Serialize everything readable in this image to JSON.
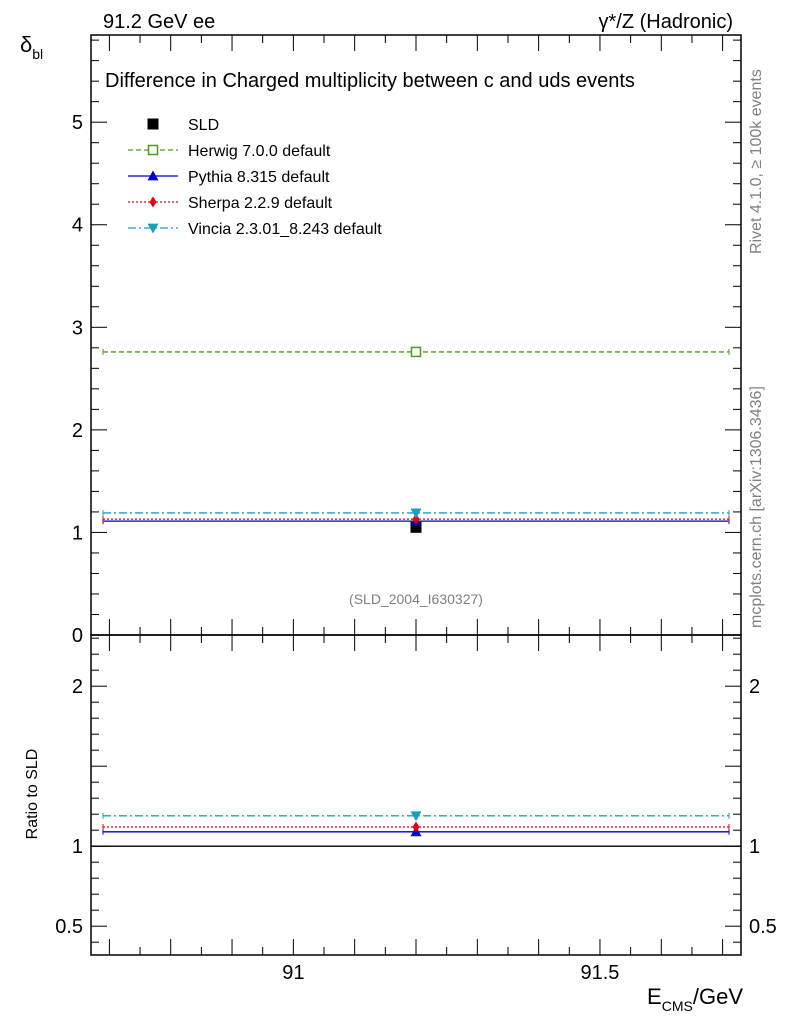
{
  "header": {
    "left": "91.2 GeV ee",
    "right": "γ*/Z (Hadronic)"
  },
  "side_labels": {
    "rivet": "Rivet 4.1.0, ≥ 100k events",
    "mcplots": "mcplots.cern.ch [arXiv:1306.3436]"
  },
  "chart_data": [
    {
      "type": "scatter",
      "title": "Difference in Charged multiplicity between c and uds events",
      "ylabel_main": "δ",
      "ylabel_sub": "bl",
      "watermark": "(SLD_2004_I630327)",
      "xlim": [
        90.67,
        91.73
      ],
      "ylim": [
        0,
        5.85
      ],
      "yticks": [
        {
          "value": 0,
          "label": "0"
        },
        {
          "value": 1,
          "label": "1"
        },
        {
          "value": 2,
          "label": "2"
        },
        {
          "value": 3,
          "label": "3"
        },
        {
          "value": 4,
          "label": "4"
        },
        {
          "value": 5,
          "label": "5"
        }
      ],
      "x_point": 91.2,
      "series": [
        {
          "name": "SLD",
          "value": 1.05,
          "color": "#000000",
          "marker": "square",
          "style": "point"
        },
        {
          "name": "Herwig 7.0.0 default",
          "value": 2.76,
          "color": "#4b9b1d",
          "marker": "open-square",
          "style": "dashed"
        },
        {
          "name": "Pythia 8.315 default",
          "value": 1.11,
          "color": "#0000cc",
          "marker": "triangle-up",
          "style": "solid"
        },
        {
          "name": "Sherpa 2.2.9 default",
          "value": 1.13,
          "color": "#e8000b",
          "marker": "diamond",
          "style": "dotted"
        },
        {
          "name": "Vincia 2.3.01_8.243 default",
          "value": 1.19,
          "color": "#1a9fbf",
          "marker": "triangle-down",
          "style": "dashdot"
        }
      ]
    },
    {
      "type": "scatter",
      "ylabel": "Ratio to SLD",
      "xlabel_main": "E",
      "xlabel_sub": "CMS",
      "xlabel_unit": "/GeV",
      "xlim": [
        90.67,
        91.73
      ],
      "ylim": [
        0.32,
        2.32
      ],
      "yticks": [
        {
          "value": 0.5,
          "label": "0.5"
        },
        {
          "value": 1,
          "label": "1"
        },
        {
          "value": 2,
          "label": "2"
        }
      ],
      "xticks": [
        {
          "value": 91,
          "label": "91"
        },
        {
          "value": 91.5,
          "label": "91.5"
        }
      ],
      "reference": 1.0,
      "series": [
        {
          "name": "Pythia 8.315 default",
          "value": 1.09,
          "color": "#0000cc",
          "marker": "triangle-up",
          "style": "solid"
        },
        {
          "name": "Sherpa 2.2.9 default",
          "value": 1.12,
          "color": "#e8000b",
          "marker": "diamond",
          "style": "dotted"
        },
        {
          "name": "Vincia 2.3.01_8.243 default",
          "value": 1.19,
          "color": "#1a9fbf",
          "marker": "triangle-down",
          "style": "dashdot"
        }
      ]
    }
  ]
}
